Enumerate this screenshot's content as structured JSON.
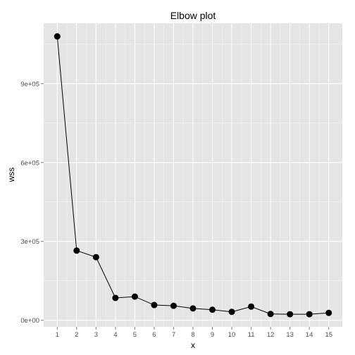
{
  "chart_data": {
    "type": "line",
    "title": "Elbow plot",
    "xlabel": "x",
    "ylabel": "wss",
    "x": [
      1,
      2,
      3,
      4,
      5,
      6,
      7,
      8,
      9,
      10,
      11,
      12,
      13,
      14,
      15
    ],
    "series": [
      {
        "values": [
          1080000,
          265000,
          240000,
          85000,
          90000,
          58000,
          55000,
          45000,
          40000,
          32000,
          52000,
          24000,
          23000,
          23000,
          28000
        ]
      }
    ],
    "x_ticks": [
      "1",
      "2",
      "3",
      "4",
      "5",
      "6",
      "7",
      "8",
      "9",
      "10",
      "11",
      "12",
      "13",
      "14",
      "15"
    ],
    "y_ticks": [
      {
        "value": 0,
        "label": "0e+00"
      },
      {
        "value": 300000,
        "label": "3e+05"
      },
      {
        "value": 600000,
        "label": "6e+05"
      },
      {
        "value": 900000,
        "label": "9e+05"
      }
    ],
    "xlim": [
      0.3,
      15.7
    ],
    "ylim": [
      -25000,
      1130000
    ],
    "grid": true,
    "panel_color": "#e5e5e5",
    "gridline_color": "#ffffff",
    "line_color": "#000000",
    "point_color": "#000000"
  }
}
